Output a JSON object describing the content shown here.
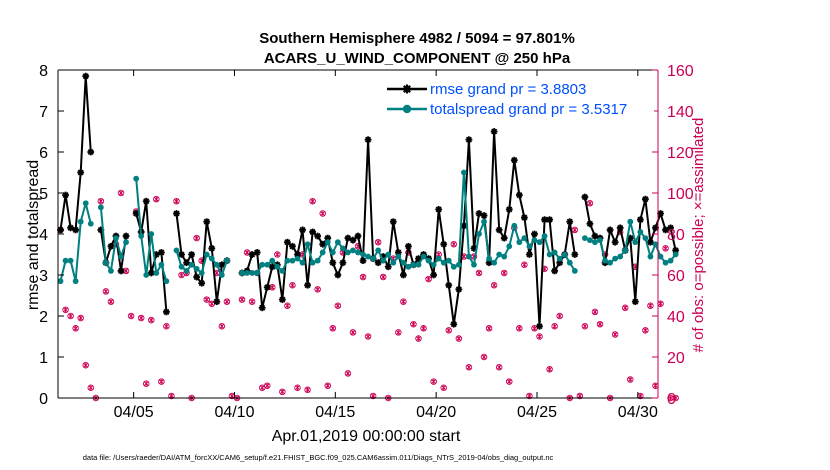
{
  "colors": {
    "rmse": "#000000",
    "spread": "#008080",
    "obs": "#cc0055",
    "legend_rmse_text": "#0050ff",
    "legend_spread_text": "#0050ff"
  },
  "chart_data": {
    "type": "line",
    "title": "Southern Hemisphere 4982 / 5094 = 97.801%",
    "subtitle": "ACARS_U_WIND_COMPONENT @ 250 hPa",
    "xlabel": "Apr.01,2019 00:00:00 start",
    "ylabel": "rmse and totalspread",
    "ylabel_right": "# of obs: o=possible; ×=assimilated",
    "footnote": "data file: /Users/raeder/DAI/ATM_forcXX/CAM6_setup/f.e21.FHIST_BGC.f09_025.CAM6assim.011/Diags_NTrS_2019-04/obs_diag_output.nc",
    "x_range_days": [
      1.25,
      31.0
    ],
    "ylim": [
      0,
      8
    ],
    "ylim_right": [
      0,
      160
    ],
    "yticks": [
      "0",
      "1",
      "2",
      "3",
      "4",
      "5",
      "6",
      "7",
      "8"
    ],
    "yticks_right": [
      "0",
      "20",
      "40",
      "60",
      "80",
      "100",
      "120",
      "140",
      "160"
    ],
    "xticks": [
      {
        "day": 5,
        "label": "04/05"
      },
      {
        "day": 10,
        "label": "04/10"
      },
      {
        "day": 15,
        "label": "04/15"
      },
      {
        "day": 20,
        "label": "04/20"
      },
      {
        "day": 25,
        "label": "04/25"
      },
      {
        "day": 30,
        "label": "04/30"
      }
    ],
    "series": [
      {
        "name": "rmse",
        "legend": "rmse grand pr = 3.8803",
        "values": [
          4.1,
          4.95,
          4.15,
          4.1,
          5.5,
          7.85,
          6.0,
          null,
          4.1,
          3.3,
          3.7,
          3.95,
          3.1,
          3.95,
          null,
          4.5,
          4.05,
          4.8,
          3.05,
          3.5,
          3.55,
          2.1,
          null,
          4.5,
          3.5,
          3.3,
          3.5,
          2.95,
          2.8,
          4.3,
          3.65,
          2.35,
          3.25,
          3.35,
          null,
          null,
          3.05,
          3.1,
          3.5,
          3.55,
          2.2,
          2.7,
          3.2,
          3.25,
          2.4,
          3.8,
          3.7,
          3.5,
          4.1,
          2.75,
          4.05,
          3.95,
          3.75,
          3.9,
          3.3,
          3.0,
          3.3,
          3.9,
          3.85,
          3.95,
          3.35,
          6.3,
          3.4,
          3.3,
          3.45,
          3.2,
          4.3,
          3.55,
          3.0,
          3.7,
          3.25,
          3.4,
          3.5,
          3.4,
          3.0,
          4.6,
          3.75,
          2.75,
          1.8,
          2.65,
          4.2,
          6.3,
          3.65,
          4.5,
          4.45,
          3.3,
          6.5,
          4.1,
          3.9,
          4.6,
          5.8,
          4.95,
          4.4,
          3.5,
          4.0,
          1.75,
          4.35,
          4.35,
          3.1,
          3.3,
          3.5,
          4.3,
          3.5,
          null,
          4.9,
          4.25,
          3.95,
          3.9,
          3.3,
          4.1,
          3.8,
          4.15,
          3.6,
          3.9,
          2.35,
          4.35,
          4.85,
          3.8,
          4.15,
          4.5,
          4.1,
          4.15,
          3.6
        ],
        "x_start": 1.375,
        "x_step": 0.25
      },
      {
        "name": "totalspread",
        "legend": "totalspread grand pr = 3.5317",
        "values": [
          2.85,
          3.35,
          3.35,
          2.85,
          4.3,
          4.75,
          4.25,
          null,
          4.65,
          3.3,
          3.1,
          3.9,
          3.45,
          3.8,
          null,
          5.35,
          3.95,
          3.0,
          4.0,
          3.05,
          3.25,
          2.85,
          null,
          3.6,
          3.2,
          3.1,
          3.25,
          3.15,
          3.05,
          3.5,
          3.4,
          3.25,
          3.0,
          3.35,
          null,
          null,
          3.05,
          3.05,
          3.05,
          3.05,
          3.25,
          3.25,
          3.35,
          3.2,
          3.1,
          3.35,
          3.35,
          3.4,
          3.3,
          3.75,
          3.3,
          3.35,
          3.55,
          3.8,
          3.55,
          3.8,
          3.65,
          3.55,
          3.6,
          3.55,
          3.5,
          3.45,
          3.4,
          3.6,
          3.35,
          3.5,
          3.3,
          3.45,
          3.3,
          3.2,
          3.25,
          3.25,
          3.45,
          3.35,
          3.25,
          3.4,
          3.3,
          3.35,
          3.2,
          3.25,
          5.5,
          3.45,
          3.25,
          4.0,
          4.3,
          3.4,
          3.3,
          3.5,
          3.45,
          3.7,
          4.2,
          3.8,
          3.9,
          3.7,
          3.85,
          3.8,
          3.95,
          3.5,
          3.55,
          3.4,
          3.5,
          3.3,
          3.1,
          null,
          3.9,
          3.85,
          3.8,
          3.85,
          3.35,
          3.3,
          3.4,
          3.45,
          3.6,
          4.3,
          3.8,
          4.05,
          3.9,
          3.45,
          3.75,
          3.45,
          3.3,
          3.35,
          3.5
        ],
        "x_start": 1.375,
        "x_step": 0.25
      },
      {
        "name": "obs_possible",
        "marker": "o",
        "values": [
          82,
          43,
          40,
          34,
          39,
          16,
          5,
          0,
          96,
          52,
          47,
          75,
          100,
          62,
          40,
          91,
          39,
          7,
          38,
          97,
          8,
          35,
          1,
          96,
          60,
          61,
          0,
          78,
          67,
          48,
          46,
          61,
          35,
          47,
          1,
          0,
          48,
          71,
          47,
          61,
          5,
          6,
          54,
          70,
          3,
          45,
          55,
          5,
          70,
          4,
          96,
          53,
          90,
          6,
          34,
          45,
          71,
          12,
          32,
          74,
          59,
          30,
          1,
          76,
          59,
          0,
          68,
          32,
          47,
          71,
          36,
          29,
          34,
          58,
          8,
          70,
          5,
          33,
          75,
          29,
          69,
          15,
          69,
          61,
          20,
          34,
          55,
          15,
          61,
          8,
          83,
          34,
          65,
          1,
          34,
          30,
          63,
          14,
          35,
          40,
          70,
          0,
          82,
          1,
          35,
          95,
          42,
          36,
          70,
          0,
          31,
          81,
          44,
          9,
          64,
          1,
          33,
          45,
          6,
          46,
          73,
          0,
          0
        ],
        "x_start": 1.375,
        "x_step": 0.25
      },
      {
        "name": "obs_assimilated",
        "marker": "x",
        "values": [
          82,
          43,
          40,
          34,
          39,
          16,
          5,
          0,
          96,
          52,
          47,
          75,
          100,
          62,
          40,
          91,
          39,
          7,
          38,
          97,
          8,
          35,
          1,
          96,
          60,
          61,
          0,
          78,
          67,
          48,
          46,
          61,
          35,
          47,
          1,
          0,
          48,
          71,
          47,
          61,
          5,
          6,
          54,
          70,
          3,
          45,
          55,
          5,
          70,
          4,
          96,
          53,
          90,
          6,
          34,
          45,
          71,
          12,
          32,
          74,
          59,
          30,
          1,
          76,
          59,
          0,
          68,
          32,
          47,
          71,
          36,
          29,
          34,
          58,
          8,
          70,
          5,
          33,
          75,
          29,
          69,
          15,
          69,
          61,
          20,
          34,
          55,
          15,
          61,
          8,
          83,
          34,
          65,
          1,
          34,
          30,
          63,
          14,
          35,
          40,
          70,
          0,
          82,
          1,
          35,
          95,
          42,
          36,
          70,
          0,
          31,
          81,
          44,
          9,
          64,
          1,
          33,
          45,
          6,
          46,
          73,
          0,
          0
        ],
        "x_start": 1.375,
        "x_step": 0.25
      }
    ],
    "legend_position": "top-right"
  }
}
